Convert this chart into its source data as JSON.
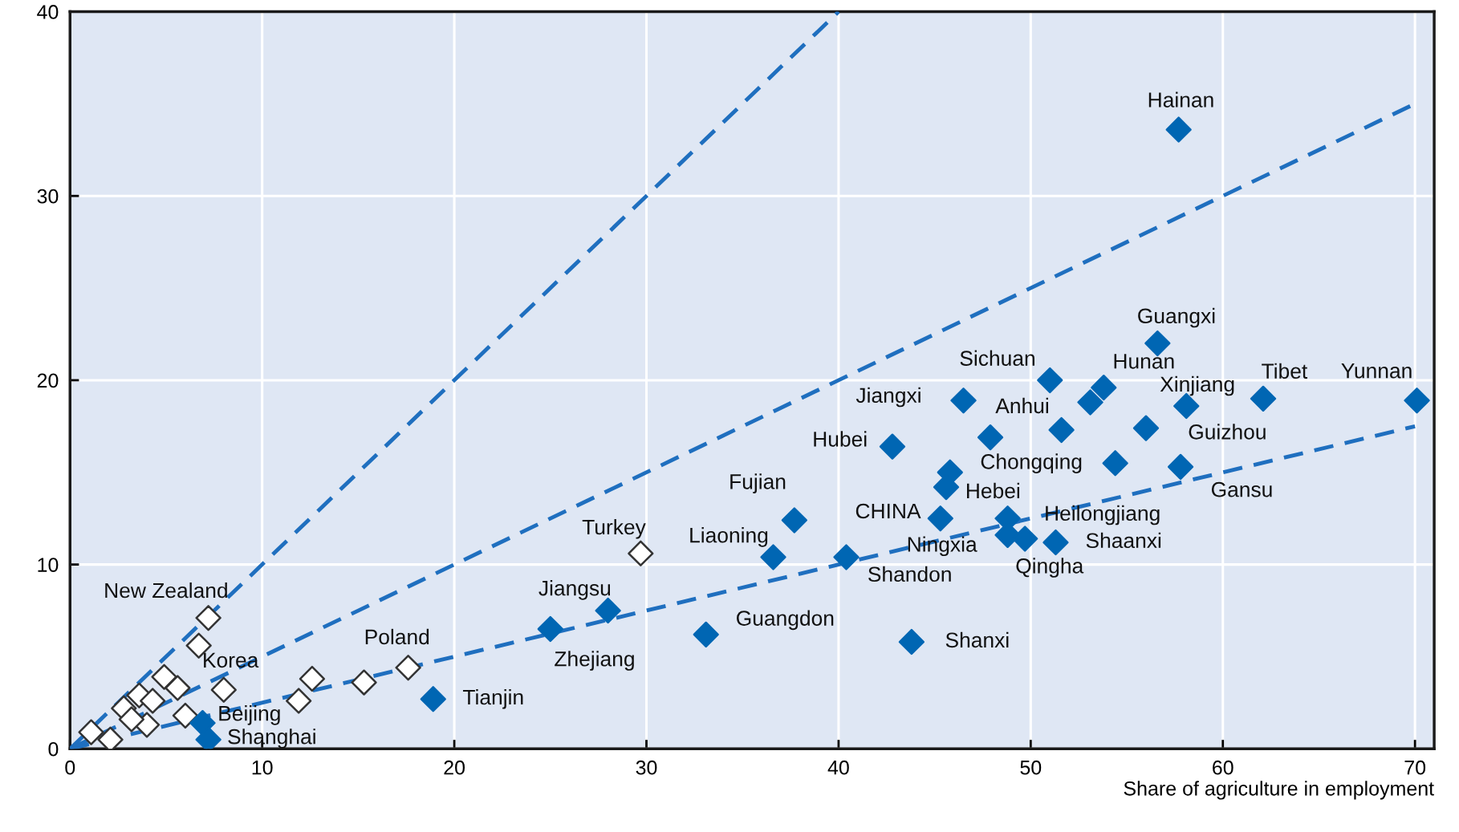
{
  "chart_data": {
    "type": "scatter",
    "xlabel": "Share of agriculture in employment",
    "xlim": [
      0,
      71
    ],
    "ylim": [
      0,
      40
    ],
    "xticks": [
      0,
      10,
      20,
      30,
      40,
      50,
      60,
      70
    ],
    "yticks": [
      0,
      10,
      20,
      30,
      40
    ],
    "grid": true,
    "marker": "diamond",
    "series": [
      {
        "type": "line",
        "color": "#1f6fbf",
        "line_style": "dashed",
        "marker": "none",
        "x": [
          0,
          40
        ],
        "values": [
          0,
          40
        ]
      },
      {
        "type": "line",
        "color": "#1f6fbf",
        "line_style": "dashed",
        "marker": "none",
        "x": [
          0,
          70
        ],
        "values": [
          0,
          35
        ]
      },
      {
        "type": "line",
        "color": "#1f6fbf",
        "line_style": "dashed",
        "marker": "none",
        "x": [
          0,
          70
        ],
        "values": [
          0,
          17.5
        ]
      },
      {
        "color": "#ffffff",
        "x": [
          7.2,
          6.7,
          8.0,
          4.9,
          5.6,
          3.6,
          2.8,
          4.3,
          6.0,
          4.0,
          1.1,
          2.1,
          3.2,
          11.9,
          12.6,
          15.3,
          17.6,
          29.7
        ],
        "values": [
          7.1,
          5.6,
          3.2,
          3.9,
          3.3,
          2.9,
          2.2,
          2.6,
          1.8,
          1.3,
          0.9,
          0.5,
          1.6,
          2.6,
          3.8,
          3.6,
          4.4,
          10.6
        ],
        "value_labels": [
          "New Zealand",
          null,
          "Korea",
          null,
          null,
          null,
          null,
          null,
          null,
          null,
          null,
          null,
          null,
          null,
          null,
          null,
          "Poland",
          "Turkey"
        ]
      },
      {
        "color": "#0066b3",
        "x": [
          57.7,
          56.6,
          51.0,
          53.8,
          53.1,
          58.1,
          46.5,
          62.1,
          70.1,
          51.6,
          56.0,
          42.8,
          47.9,
          54.4,
          57.8,
          45.8,
          45.6,
          37.7,
          45.3,
          48.8,
          48.8,
          49.7,
          51.3,
          36.6,
          40.4,
          25.0,
          28.0,
          33.1,
          43.8,
          18.9,
          6.9,
          7.2
        ],
        "values": [
          33.6,
          22.0,
          20.0,
          19.6,
          18.8,
          18.6,
          18.9,
          19.0,
          18.9,
          17.3,
          17.4,
          16.4,
          16.9,
          15.5,
          15.3,
          15.0,
          14.2,
          12.4,
          12.5,
          12.5,
          11.6,
          11.4,
          11.2,
          10.4,
          10.4,
          6.5,
          7.5,
          6.2,
          5.8,
          2.7,
          1.4,
          0.5
        ],
        "value_labels": [
          "Hainan",
          "Guangxi",
          "Sichuan",
          "Hunan",
          null,
          "Xinjiang",
          "Jiangxi",
          "Tibet",
          "Yunnan",
          "Anhui",
          "Guizhou",
          "Hubei",
          null,
          null,
          "Gansu",
          "Chongqing",
          "Hebei",
          "Fujian",
          "CHINA",
          "Heilongjiang",
          "Ningxia",
          "Qingha",
          "Shaanxi",
          "Liaoning",
          "Shandon",
          "Jiangsu",
          "Zhejiang",
          "Guangdon",
          "Shanxi",
          "Tianjin",
          "Beijing",
          "Shanghai"
        ]
      }
    ]
  }
}
